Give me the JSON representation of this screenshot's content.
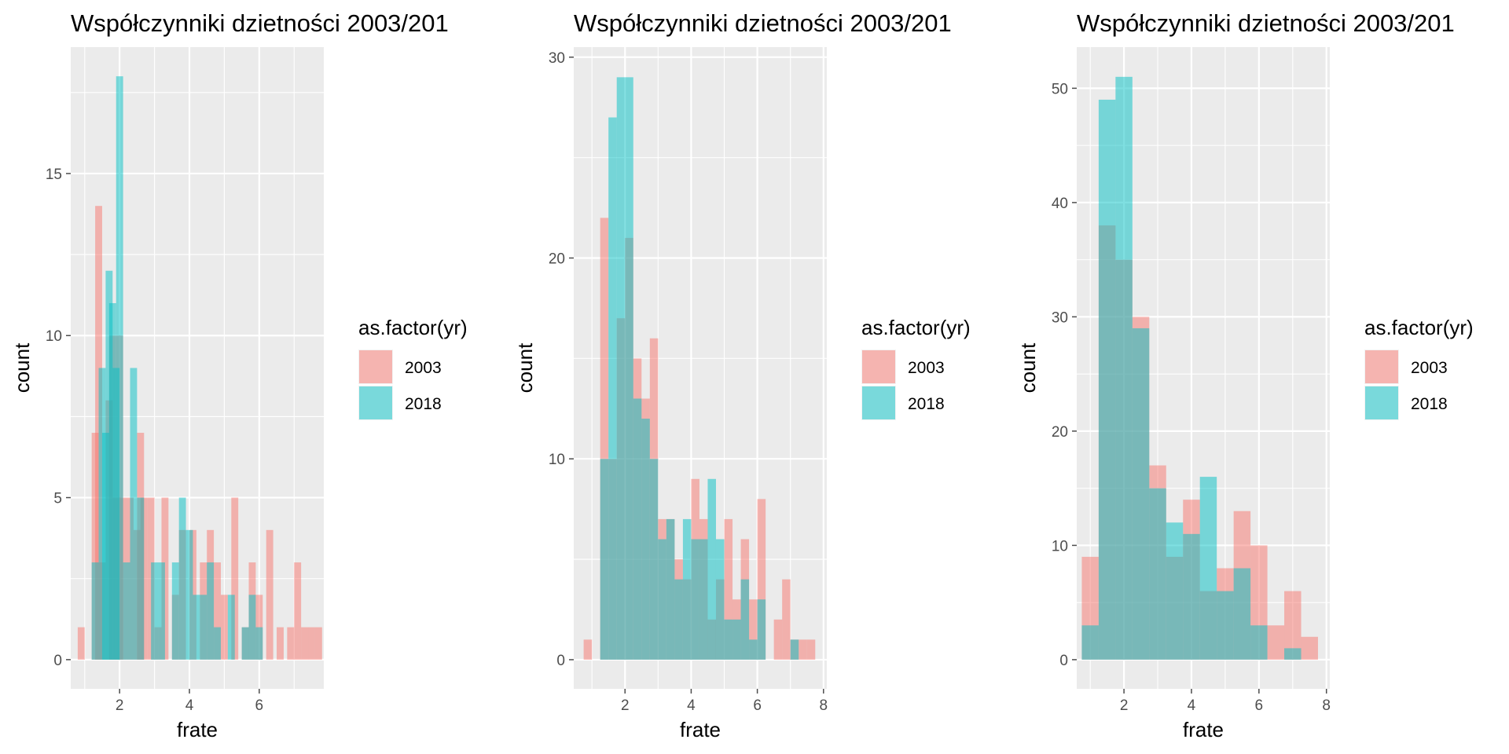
{
  "colors": {
    "2003": "#F8766D",
    "2018": "#00BFC4",
    "panel": "#EBEBEB",
    "grid": "#FFFFFF",
    "tick": "#4D4D4D"
  },
  "chart_data": [
    {
      "type": "histogram",
      "title": "Współczynniki dzietności 2003/201",
      "xlabel": "frate",
      "ylabel": "count",
      "xlim": [
        0.6,
        7.85
      ],
      "ylim": [
        -0.9,
        18.9
      ],
      "xticks": [
        2,
        4,
        6
      ],
      "yticks": [
        0,
        5,
        10,
        15
      ],
      "grid": true,
      "legend": {
        "title": "as.factor(yr)",
        "entries": [
          "2003",
          "2018"
        ],
        "position": "right"
      },
      "binwidth": 0.2,
      "series": [
        {
          "name": "2003",
          "bars": [
            [
              0.9,
              1
            ],
            [
              1.3,
              7
            ],
            [
              1.4,
              14
            ],
            [
              1.5,
              3
            ],
            [
              1.7,
              8
            ],
            [
              1.8,
              10
            ],
            [
              1.9,
              5
            ],
            [
              2.0,
              10
            ],
            [
              2.1,
              5
            ],
            [
              2.3,
              5
            ],
            [
              2.5,
              4
            ],
            [
              2.6,
              7
            ],
            [
              2.7,
              5
            ],
            [
              2.9,
              5
            ],
            [
              3.1,
              1
            ],
            [
              3.3,
              5
            ],
            [
              3.6,
              2
            ],
            [
              3.8,
              4
            ],
            [
              4.1,
              4
            ],
            [
              4.4,
              3
            ],
            [
              4.6,
              4
            ],
            [
              4.8,
              3
            ],
            [
              5.0,
              2
            ],
            [
              5.3,
              5
            ],
            [
              5.6,
              1
            ],
            [
              5.8,
              3
            ],
            [
              6.0,
              2
            ],
            [
              6.3,
              4
            ],
            [
              6.6,
              1
            ],
            [
              6.9,
              1
            ],
            [
              7.1,
              3
            ],
            [
              7.3,
              1
            ],
            [
              7.5,
              1
            ],
            [
              7.7,
              1
            ]
          ]
        },
        {
          "name": "2018",
          "bars": [
            [
              1.3,
              3
            ],
            [
              1.5,
              9
            ],
            [
              1.6,
              7
            ],
            [
              1.7,
              12
            ],
            [
              1.8,
              11
            ],
            [
              1.9,
              9
            ],
            [
              2.0,
              18
            ],
            [
              2.2,
              3
            ],
            [
              2.4,
              9
            ],
            [
              2.6,
              5
            ],
            [
              3.0,
              3
            ],
            [
              3.2,
              3
            ],
            [
              3.6,
              3
            ],
            [
              3.8,
              5
            ],
            [
              4.0,
              4
            ],
            [
              4.2,
              2
            ],
            [
              4.4,
              2
            ],
            [
              4.6,
              3
            ],
            [
              4.8,
              1
            ],
            [
              5.2,
              2
            ],
            [
              5.6,
              1
            ],
            [
              5.8,
              2
            ],
            [
              6.0,
              1
            ]
          ]
        }
      ]
    },
    {
      "type": "histogram",
      "title": "Współczynniki dzietności 2003/201",
      "xlabel": "frate",
      "ylabel": "count",
      "xlim": [
        0.45,
        8.1
      ],
      "ylim": [
        -1.45,
        30.5
      ],
      "xticks": [
        2,
        4,
        6,
        8
      ],
      "yticks": [
        0,
        10,
        20,
        30
      ],
      "grid": true,
      "legend": {
        "title": "as.factor(yr)",
        "entries": [
          "2003",
          "2018"
        ],
        "position": "right"
      },
      "binwidth": 0.25,
      "series": [
        {
          "name": "2003",
          "bars": [
            [
              0.875,
              1
            ],
            [
              1.375,
              22
            ],
            [
              1.625,
              10
            ],
            [
              1.875,
              17
            ],
            [
              2.125,
              21
            ],
            [
              2.375,
              15
            ],
            [
              2.625,
              13
            ],
            [
              2.875,
              16
            ],
            [
              3.125,
              7
            ],
            [
              3.375,
              7
            ],
            [
              3.625,
              5
            ],
            [
              3.875,
              4
            ],
            [
              4.125,
              9
            ],
            [
              4.375,
              7
            ],
            [
              4.625,
              2
            ],
            [
              4.875,
              4
            ],
            [
              5.125,
              7
            ],
            [
              5.375,
              3
            ],
            [
              5.625,
              6
            ],
            [
              5.875,
              3
            ],
            [
              6.125,
              8
            ],
            [
              6.375,
              0
            ],
            [
              6.625,
              2
            ],
            [
              6.875,
              4
            ],
            [
              7.125,
              1
            ],
            [
              7.375,
              1
            ],
            [
              7.625,
              1
            ]
          ]
        },
        {
          "name": "2018",
          "bars": [
            [
              1.375,
              10
            ],
            [
              1.625,
              27
            ],
            [
              1.875,
              29
            ],
            [
              2.125,
              29
            ],
            [
              2.375,
              13
            ],
            [
              2.625,
              12
            ],
            [
              2.875,
              10
            ],
            [
              3.125,
              6
            ],
            [
              3.375,
              7
            ],
            [
              3.625,
              4
            ],
            [
              3.875,
              7
            ],
            [
              4.125,
              6
            ],
            [
              4.375,
              6
            ],
            [
              4.625,
              9
            ],
            [
              4.875,
              6
            ],
            [
              5.125,
              2
            ],
            [
              5.375,
              2
            ],
            [
              5.625,
              4
            ],
            [
              5.875,
              1
            ],
            [
              6.125,
              3
            ],
            [
              7.125,
              1
            ]
          ]
        }
      ]
    },
    {
      "type": "histogram",
      "title": "Współczynniki dzietności 2003/201",
      "xlabel": "frate",
      "ylabel": "count",
      "xlim": [
        0.6,
        8.1
      ],
      "ylim": [
        -2.55,
        53.6
      ],
      "xticks": [
        2,
        4,
        6,
        8
      ],
      "yticks": [
        0,
        10,
        20,
        30,
        40,
        50
      ],
      "grid": true,
      "legend": {
        "title": "as.factor(yr)",
        "entries": [
          "2003",
          "2018"
        ],
        "position": "right"
      },
      "binwidth": 0.5,
      "series": [
        {
          "name": "2003",
          "bars": [
            [
              1.0,
              9
            ],
            [
              1.5,
              38
            ],
            [
              2.0,
              35
            ],
            [
              2.5,
              30
            ],
            [
              3.0,
              17
            ],
            [
              3.5,
              9
            ],
            [
              4.0,
              14
            ],
            [
              4.5,
              6
            ],
            [
              5.0,
              8
            ],
            [
              5.5,
              13
            ],
            [
              6.0,
              10
            ],
            [
              6.5,
              3
            ],
            [
              7.0,
              6
            ],
            [
              7.5,
              2
            ]
          ]
        },
        {
          "name": "2018",
          "bars": [
            [
              1.0,
              3
            ],
            [
              1.5,
              49
            ],
            [
              2.0,
              51
            ],
            [
              2.5,
              29
            ],
            [
              3.0,
              15
            ],
            [
              3.5,
              12
            ],
            [
              4.0,
              11
            ],
            [
              4.5,
              16
            ],
            [
              5.0,
              6
            ],
            [
              5.5,
              8
            ],
            [
              6.0,
              3
            ],
            [
              7.0,
              1
            ]
          ]
        }
      ]
    }
  ]
}
